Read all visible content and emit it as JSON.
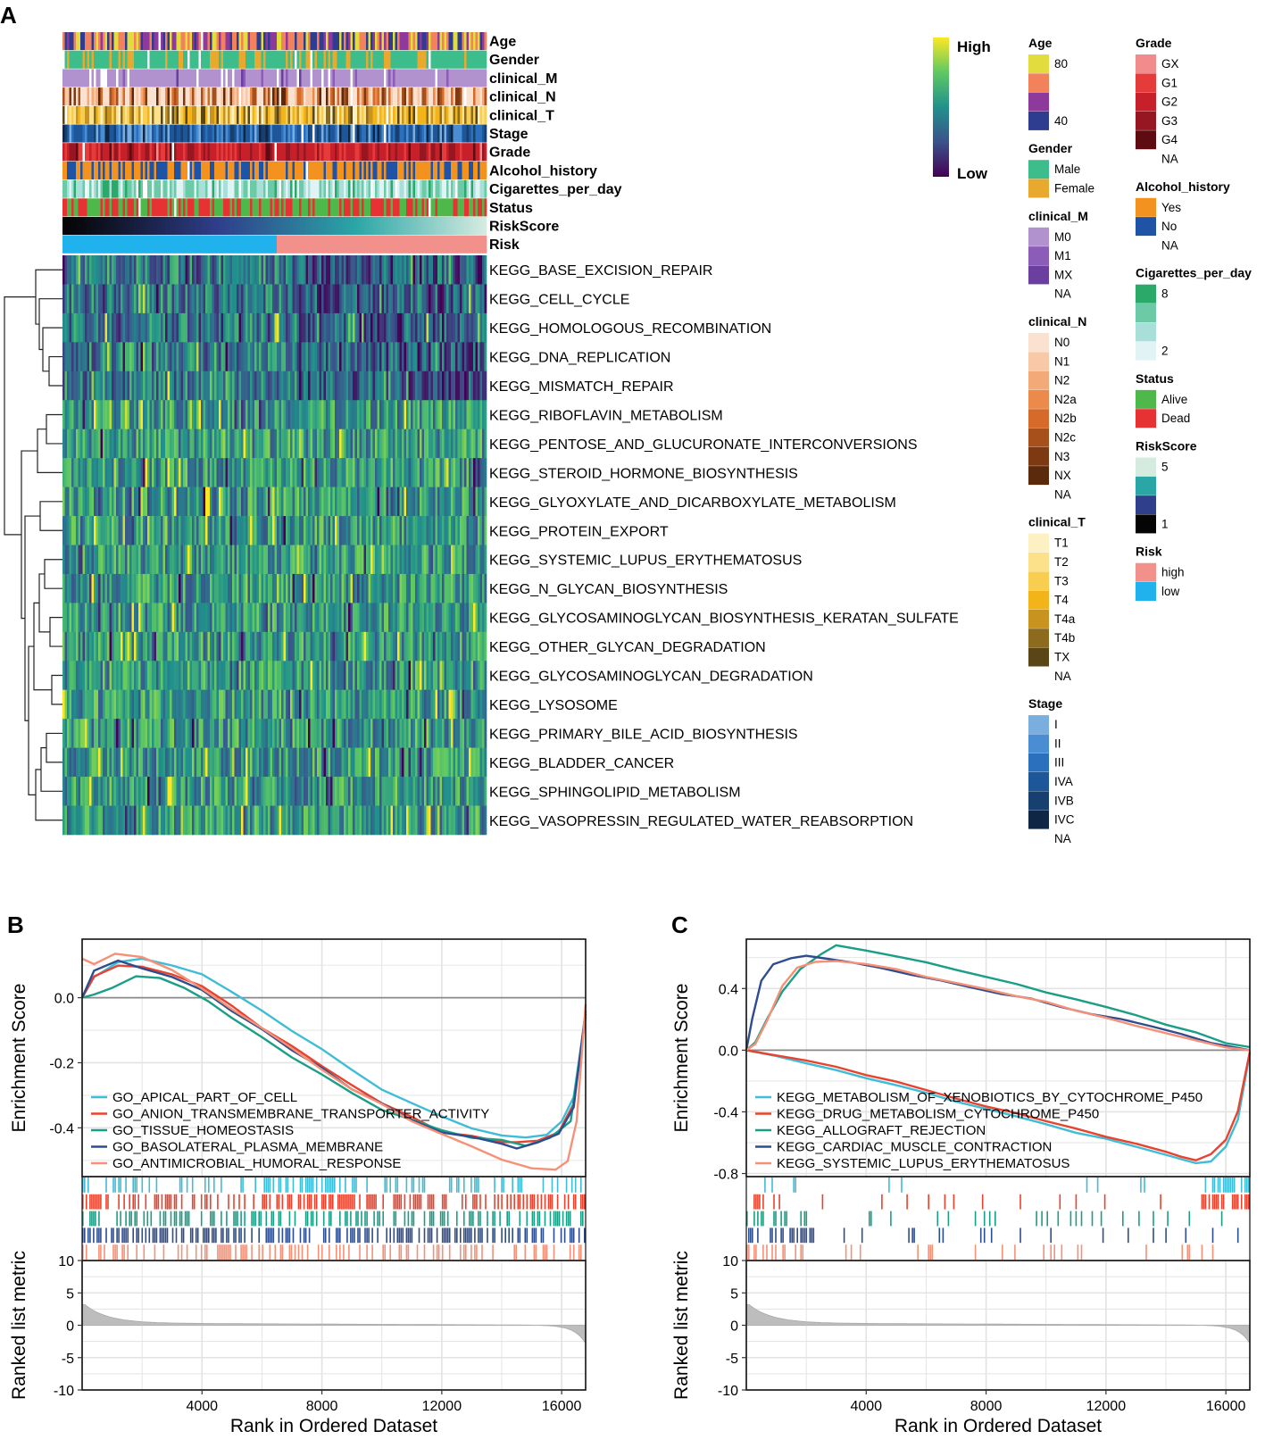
{
  "figure": {
    "panel_labels": [
      "A",
      "B",
      "C"
    ],
    "colors": {
      "viridis": [
        "#440154",
        "#3b528b",
        "#21918c",
        "#5ec962",
        "#fde725"
      ],
      "gsea_b": [
        "#3fbcd6",
        "#e8432e",
        "#1a9e86",
        "#2e4d8e",
        "#f59177"
      ],
      "gsea_c": [
        "#3fbcd6",
        "#e8432e",
        "#1a9e86",
        "#2e4d8e",
        "#f59177"
      ]
    }
  },
  "heatmap": {
    "color_key": {
      "high": "High",
      "low": "Low"
    },
    "annotation_tracks": [
      "Age",
      "Gender",
      "clinical_M",
      "clinical_N",
      "clinical_T",
      "Stage",
      "Grade",
      "Alcohol_history",
      "Cigarettes_per_day",
      "Status",
      "RiskScore",
      "Risk"
    ],
    "pathways": [
      "KEGG_BASE_EXCISION_REPAIR",
      "KEGG_CELL_CYCLE",
      "KEGG_HOMOLOGOUS_RECOMBINATION",
      "KEGG_DNA_REPLICATION",
      "KEGG_MISMATCH_REPAIR",
      "KEGG_RIBOFLAVIN_METABOLISM",
      "KEGG_PENTOSE_AND_GLUCURONATE_INTERCONVERSIONS",
      "KEGG_STEROID_HORMONE_BIOSYNTHESIS",
      "KEGG_GLYOXYLATE_AND_DICARBOXYLATE_METABOLISM",
      "KEGG_PROTEIN_EXPORT",
      "KEGG_SYSTEMIC_LUPUS_ERYTHEMATOSUS",
      "KEGG_N_GLYCAN_BIOSYNTHESIS",
      "KEGG_GLYCOSAMINOGLYCAN_BIOSYNTHESIS_KERATAN_SULFATE",
      "KEGG_OTHER_GLYCAN_DEGRADATION",
      "KEGG_GLYCOSAMINOGLYCAN_DEGRADATION",
      "KEGG_LYSOSOME",
      "KEGG_PRIMARY_BILE_ACID_BIOSYNTHESIS",
      "KEGG_BLADDER_CANCER",
      "KEGG_SPHINGOLIPID_METABOLISM",
      "KEGG_VASOPRESSIN_REGULATED_WATER_REABSORPTION"
    ],
    "legends": [
      {
        "title": "Age",
        "items": [
          {
            "label": "80",
            "color": "#e3dc3e"
          },
          {
            "label": "",
            "color": "#f2825b"
          },
          {
            "label": "",
            "color": "#8e3a9c"
          },
          {
            "label": "40",
            "color": "#2e3d8f"
          }
        ]
      },
      {
        "title": "Gender",
        "items": [
          {
            "label": "Male",
            "color": "#3dbd8b"
          },
          {
            "label": "Female",
            "color": "#e8a92e"
          }
        ]
      },
      {
        "title": "clinical_M",
        "items": [
          {
            "label": "M0",
            "color": "#b291cf"
          },
          {
            "label": "M1",
            "color": "#8b5cb8"
          },
          {
            "label": "MX",
            "color": "#6a3fa0"
          },
          {
            "label": "NA",
            "color": null
          }
        ]
      },
      {
        "title": "clinical_N",
        "items": [
          {
            "label": "N0",
            "color": "#fbe1cf"
          },
          {
            "label": "N1",
            "color": "#f8c8a7"
          },
          {
            "label": "N2",
            "color": "#f4aa78"
          },
          {
            "label": "N2a",
            "color": "#ec8a4c"
          },
          {
            "label": "N2b",
            "color": "#d56a2a"
          },
          {
            "label": "N2c",
            "color": "#a8501c"
          },
          {
            "label": "N3",
            "color": "#7d3a12"
          },
          {
            "label": "NX",
            "color": "#5b2a0c"
          },
          {
            "label": "NA",
            "color": null
          }
        ]
      },
      {
        "title": "clinical_T",
        "items": [
          {
            "label": "T1",
            "color": "#fdf0c2"
          },
          {
            "label": "T2",
            "color": "#fce08a"
          },
          {
            "label": "T3",
            "color": "#f9cd4f"
          },
          {
            "label": "T4",
            "color": "#f2b418"
          },
          {
            "label": "T4a",
            "color": "#c9931f"
          },
          {
            "label": "T4b",
            "color": "#8c6a1e"
          },
          {
            "label": "TX",
            "color": "#5a4517"
          },
          {
            "label": "NA",
            "color": null
          }
        ]
      },
      {
        "title": "Stage",
        "items": [
          {
            "label": "I",
            "color": "#79aedf"
          },
          {
            "label": "II",
            "color": "#4a8dd2"
          },
          {
            "label": "III",
            "color": "#2b70bd"
          },
          {
            "label": "IVA",
            "color": "#1d5699"
          },
          {
            "label": "IVB",
            "color": "#173f70"
          },
          {
            "label": "IVC",
            "color": "#0f2745"
          },
          {
            "label": "NA",
            "color": null
          }
        ]
      },
      {
        "title": "Grade",
        "items": [
          {
            "label": "GX",
            "color": "#f28b8b"
          },
          {
            "label": "G1",
            "color": "#e63b3b"
          },
          {
            "label": "G2",
            "color": "#c8202a"
          },
          {
            "label": "G3",
            "color": "#961722"
          },
          {
            "label": "G4",
            "color": "#5e0b12"
          },
          {
            "label": "NA",
            "color": null
          }
        ]
      },
      {
        "title": "Alcohol_history",
        "items": [
          {
            "label": "Yes",
            "color": "#f3921f"
          },
          {
            "label": "No",
            "color": "#1f53a5"
          },
          {
            "label": "NA",
            "color": null
          }
        ]
      },
      {
        "title": "Cigarettes_per_day",
        "items": [
          {
            "label": "8",
            "color": "#2aa968"
          },
          {
            "label": "",
            "color": "#6ccba6"
          },
          {
            "label": "",
            "color": "#a8dfd9"
          },
          {
            "label": "2",
            "color": "#e1f3f5"
          }
        ]
      },
      {
        "title": "Status",
        "items": [
          {
            "label": "Alive",
            "color": "#4fb84a"
          },
          {
            "label": "Dead",
            "color": "#e63232"
          }
        ]
      },
      {
        "title": "RiskScore",
        "items": [
          {
            "label": "5",
            "color": "#d5ebe0"
          },
          {
            "label": "",
            "color": "#2aa6a6"
          },
          {
            "label": "",
            "color": "#2f3f8c"
          },
          {
            "label": "1",
            "color": "#050505"
          }
        ]
      },
      {
        "title": "Risk",
        "items": [
          {
            "label": "high",
            "color": "#f2908c"
          },
          {
            "label": "low",
            "color": "#1fb2ec"
          }
        ]
      }
    ]
  },
  "chart_data": [
    {
      "panel": "B",
      "type": "line",
      "title": "",
      "xlabel": "Rank in Ordered Dataset",
      "ylabel": "Enrichment Score",
      "xlim": [
        0,
        16800
      ],
      "ylim": [
        -0.55,
        0.18
      ],
      "yticks": [
        0.0,
        -0.2,
        -0.4
      ],
      "ytick_labels": [
        "0.0",
        "-0.2",
        "-0.4"
      ],
      "xticks": [
        4000,
        8000,
        12000,
        16000
      ],
      "series": [
        {
          "name": "GO_APICAL_PART_OF_CELL",
          "x": [
            0,
            400,
            1200,
            2000,
            3000,
            4000,
            5000,
            6000,
            7000,
            8000,
            9000,
            10000,
            11000,
            12000,
            13000,
            14000,
            14800,
            15500,
            16000,
            16400,
            16800
          ],
          "values": [
            0.0,
            0.06,
            0.11,
            0.12,
            0.1,
            0.07,
            0.02,
            -0.04,
            -0.1,
            -0.16,
            -0.22,
            -0.28,
            -0.33,
            -0.37,
            -0.4,
            -0.42,
            -0.43,
            -0.42,
            -0.38,
            -0.3,
            -0.05
          ]
        },
        {
          "name": "GO_ANION_TRANSMEMBRANE_TRANSPORTER_ACTIVITY",
          "x": [
            0,
            400,
            1200,
            2000,
            3000,
            4000,
            5000,
            6000,
            7000,
            8000,
            9000,
            10000,
            11000,
            12000,
            13000,
            14000,
            14500,
            15200,
            15900,
            16400,
            16800
          ],
          "values": [
            0.0,
            0.07,
            0.1,
            0.09,
            0.07,
            0.03,
            -0.03,
            -0.09,
            -0.15,
            -0.21,
            -0.27,
            -0.32,
            -0.37,
            -0.41,
            -0.43,
            -0.45,
            -0.45,
            -0.44,
            -0.41,
            -0.32,
            -0.05
          ]
        },
        {
          "name": "GO_TISSUE_HOMEOSTASIS",
          "x": [
            0,
            400,
            1000,
            1800,
            2600,
            3400,
            4200,
            5000,
            6000,
            7000,
            8000,
            9000,
            10000,
            11000,
            12000,
            13000,
            14000,
            14800,
            15600,
            16300,
            16800
          ],
          "values": [
            0.0,
            0.01,
            0.03,
            0.07,
            0.06,
            0.03,
            -0.01,
            -0.06,
            -0.12,
            -0.18,
            -0.24,
            -0.29,
            -0.34,
            -0.38,
            -0.41,
            -0.43,
            -0.44,
            -0.45,
            -0.43,
            -0.38,
            -0.06
          ]
        },
        {
          "name": "GO_BASOLATERAL_PLASMA_MEMBRANE",
          "x": [
            0,
            400,
            1200,
            2000,
            3000,
            4000,
            5000,
            6000,
            7000,
            8000,
            9000,
            10000,
            11000,
            12000,
            13000,
            14000,
            14500,
            15200,
            15900,
            16400,
            16800
          ],
          "values": [
            0.0,
            0.08,
            0.11,
            0.09,
            0.06,
            0.02,
            -0.04,
            -0.1,
            -0.16,
            -0.22,
            -0.28,
            -0.33,
            -0.38,
            -0.41,
            -0.43,
            -0.45,
            -0.46,
            -0.45,
            -0.42,
            -0.34,
            -0.04
          ]
        },
        {
          "name": "GO_ANTIMICROBIAL_HUMORAL_RESPONSE",
          "x": [
            0,
            400,
            1100,
            2000,
            3000,
            4000,
            5000,
            6000,
            7000,
            8000,
            9000,
            10000,
            11000,
            12000,
            13000,
            14000,
            15000,
            15800,
            16200,
            16500,
            16800
          ],
          "values": [
            0.12,
            0.1,
            0.14,
            0.12,
            0.08,
            0.03,
            -0.03,
            -0.09,
            -0.15,
            -0.22,
            -0.28,
            -0.33,
            -0.38,
            -0.42,
            -0.46,
            -0.5,
            -0.52,
            -0.53,
            -0.5,
            -0.38,
            -0.02
          ]
        }
      ],
      "ranked_list": {
        "ylabel": "Ranked list metric",
        "ylim": [
          -10,
          10
        ],
        "yticks": [
          10,
          5,
          0,
          -5,
          -10
        ],
        "ytick_labels": [
          "10",
          "5",
          "0",
          "-5",
          "-10"
        ]
      }
    },
    {
      "panel": "C",
      "type": "line",
      "title": "",
      "xlabel": "Rank in Ordered Dataset",
      "ylabel": "Enrichment Score",
      "xlim": [
        0,
        16800
      ],
      "ylim": [
        -0.82,
        0.72
      ],
      "yticks": [
        0.4,
        0.0,
        -0.4,
        -0.8
      ],
      "ytick_labels": [
        "0.4",
        "0.0",
        "-0.4",
        "-0.8"
      ],
      "xticks": [
        4000,
        8000,
        12000,
        16000
      ],
      "series": [
        {
          "name": "KEGG_METABOLISM_OF_XENOBIOTICS_BY_CYTOCHROME_P450",
          "x": [
            0,
            1000,
            2000,
            3000,
            4000,
            5000,
            6000,
            7000,
            8000,
            9000,
            10000,
            11000,
            12000,
            13000,
            14000,
            14500,
            15000,
            15500,
            16000,
            16400,
            16800
          ],
          "values": [
            0.0,
            -0.04,
            -0.08,
            -0.13,
            -0.18,
            -0.23,
            -0.28,
            -0.33,
            -0.38,
            -0.43,
            -0.48,
            -0.53,
            -0.58,
            -0.63,
            -0.68,
            -0.71,
            -0.73,
            -0.72,
            -0.62,
            -0.45,
            -0.02
          ]
        },
        {
          "name": "KEGG_DRUG_METABOLISM_CYTOCHROME_P450",
          "x": [
            0,
            1000,
            2000,
            3000,
            4000,
            5000,
            6000,
            7000,
            8000,
            9000,
            10000,
            11000,
            12000,
            13000,
            14000,
            14500,
            15000,
            15500,
            16000,
            16400,
            16800
          ],
          "values": [
            0.0,
            -0.03,
            -0.07,
            -0.11,
            -0.16,
            -0.21,
            -0.26,
            -0.31,
            -0.36,
            -0.41,
            -0.46,
            -0.51,
            -0.56,
            -0.61,
            -0.66,
            -0.69,
            -0.71,
            -0.68,
            -0.58,
            -0.4,
            -0.01
          ]
        },
        {
          "name": "KEGG_ALLOGRAFT_REJECTION",
          "x": [
            0,
            300,
            700,
            1200,
            1800,
            2500,
            3000,
            4000,
            5000,
            6000,
            7000,
            8000,
            9000,
            10000,
            11000,
            12000,
            13000,
            14000,
            15000,
            16000,
            16800
          ],
          "values": [
            0.0,
            0.05,
            0.2,
            0.38,
            0.52,
            0.62,
            0.68,
            0.65,
            0.61,
            0.57,
            0.52,
            0.47,
            0.43,
            0.38,
            0.33,
            0.28,
            0.23,
            0.17,
            0.11,
            0.05,
            0.02
          ]
        },
        {
          "name": "KEGG_CARDIAC_MUSCLE_CONTRACTION",
          "x": [
            0,
            200,
            500,
            900,
            1500,
            2000,
            2600,
            3500,
            4500,
            5500,
            6500,
            7500,
            8500,
            9500,
            10500,
            11500,
            12500,
            13500,
            14500,
            15500,
            16800
          ],
          "values": [
            0.0,
            0.2,
            0.45,
            0.56,
            0.6,
            0.61,
            0.6,
            0.57,
            0.53,
            0.49,
            0.45,
            0.41,
            0.37,
            0.33,
            0.28,
            0.24,
            0.2,
            0.15,
            0.1,
            0.05,
            0.0
          ]
        },
        {
          "name": "KEGG_SYSTEMIC_LUPUS_ERYTHEMATOSUS",
          "x": [
            0,
            300,
            700,
            1200,
            1700,
            2300,
            3000,
            4000,
            5000,
            6000,
            7000,
            8000,
            9000,
            10000,
            11000,
            12000,
            13000,
            14000,
            15000,
            16000,
            16800
          ],
          "values": [
            0.0,
            0.04,
            0.2,
            0.42,
            0.53,
            0.57,
            0.58,
            0.56,
            0.52,
            0.48,
            0.44,
            0.4,
            0.35,
            0.31,
            0.26,
            0.21,
            0.16,
            0.11,
            0.06,
            0.02,
            0.0
          ]
        }
      ],
      "ranked_list": {
        "ylabel": "Ranked list metric",
        "ylim": [
          -10,
          10
        ],
        "yticks": [
          10,
          5,
          0,
          -5,
          -10
        ],
        "ytick_labels": [
          "10",
          "5",
          "0",
          "-5",
          "-10"
        ]
      }
    }
  ]
}
